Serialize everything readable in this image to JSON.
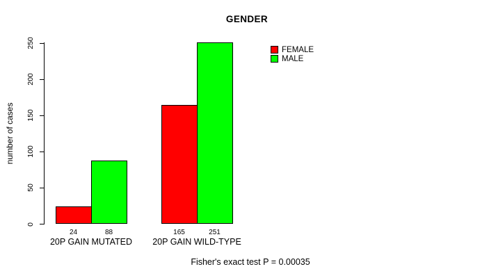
{
  "chart_data": {
    "type": "bar",
    "title": "GENDER",
    "ylabel": "number of cases",
    "xlabel": "",
    "categories": [
      "20P GAIN MUTATED",
      "20P GAIN WILD-TYPE"
    ],
    "series": [
      {
        "name": "FEMALE",
        "color": "#ff0000",
        "values": [
          24,
          165
        ]
      },
      {
        "name": "MALE",
        "color": "#00ff00",
        "values": [
          88,
          251
        ]
      }
    ],
    "bar_value_labels": [
      [
        "24",
        "88"
      ],
      [
        "165",
        "251"
      ]
    ],
    "yticks": [
      0,
      50,
      100,
      150,
      200,
      250
    ],
    "ylim": [
      0,
      250
    ],
    "grid": false,
    "legend_position": "top-right-inside",
    "annotation": "Fisher's exact test P = 0.00035"
  },
  "colors": {
    "background": "#ffffff",
    "axis": "#000000",
    "text": "#000000",
    "female": "#ff0000",
    "male": "#00ff00"
  }
}
